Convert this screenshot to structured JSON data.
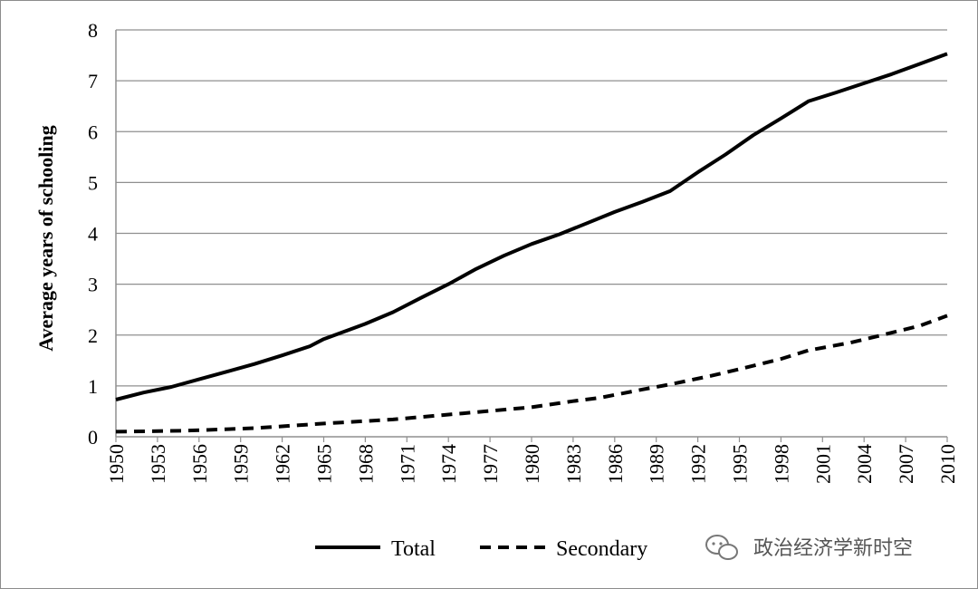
{
  "watermark": {
    "text": "政治经济学新时空",
    "icon": "wechat-icon"
  },
  "chart_data": {
    "type": "line",
    "ylabel": "Average years of schooling",
    "xlabel": "",
    "ylim": [
      0,
      8
    ],
    "yticks": [
      0,
      1,
      2,
      3,
      4,
      5,
      6,
      7,
      8
    ],
    "xlim": [
      1950,
      2010
    ],
    "xticks": [
      1950,
      1953,
      1956,
      1959,
      1962,
      1965,
      1968,
      1971,
      1974,
      1977,
      1980,
      1983,
      1986,
      1989,
      1992,
      1995,
      1998,
      2001,
      2004,
      2007,
      2010
    ],
    "grid": true,
    "legend": "bottom",
    "series": [
      {
        "name": "Total",
        "style": "solid",
        "x": [
          1950,
          1952,
          1954,
          1956,
          1958,
          1960,
          1962,
          1964,
          1965,
          1968,
          1970,
          1972,
          1974,
          1976,
          1978,
          1980,
          1982,
          1984,
          1986,
          1988,
          1990,
          1992,
          1994,
          1996,
          1998,
          2000,
          2002,
          2004,
          2006,
          2008,
          2010
        ],
        "values": [
          0.73,
          0.87,
          0.98,
          1.13,
          1.28,
          1.43,
          1.6,
          1.78,
          1.92,
          2.22,
          2.45,
          2.73,
          3.0,
          3.3,
          3.56,
          3.79,
          3.98,
          4.2,
          4.42,
          4.62,
          4.83,
          5.2,
          5.55,
          5.93,
          6.26,
          6.6,
          6.77,
          6.95,
          7.13,
          7.33,
          7.53
        ]
      },
      {
        "name": "Secondary",
        "style": "dashed",
        "x": [
          1950,
          1955,
          1960,
          1965,
          1970,
          1975,
          1980,
          1983,
          1985,
          1988,
          1990,
          1993,
          1995,
          1998,
          2000,
          2003,
          2005,
          2008,
          2010
        ],
        "values": [
          0.1,
          0.12,
          0.17,
          0.26,
          0.34,
          0.46,
          0.58,
          0.7,
          0.77,
          0.93,
          1.03,
          1.2,
          1.33,
          1.53,
          1.7,
          1.85,
          1.98,
          2.18,
          2.38
        ]
      }
    ]
  }
}
